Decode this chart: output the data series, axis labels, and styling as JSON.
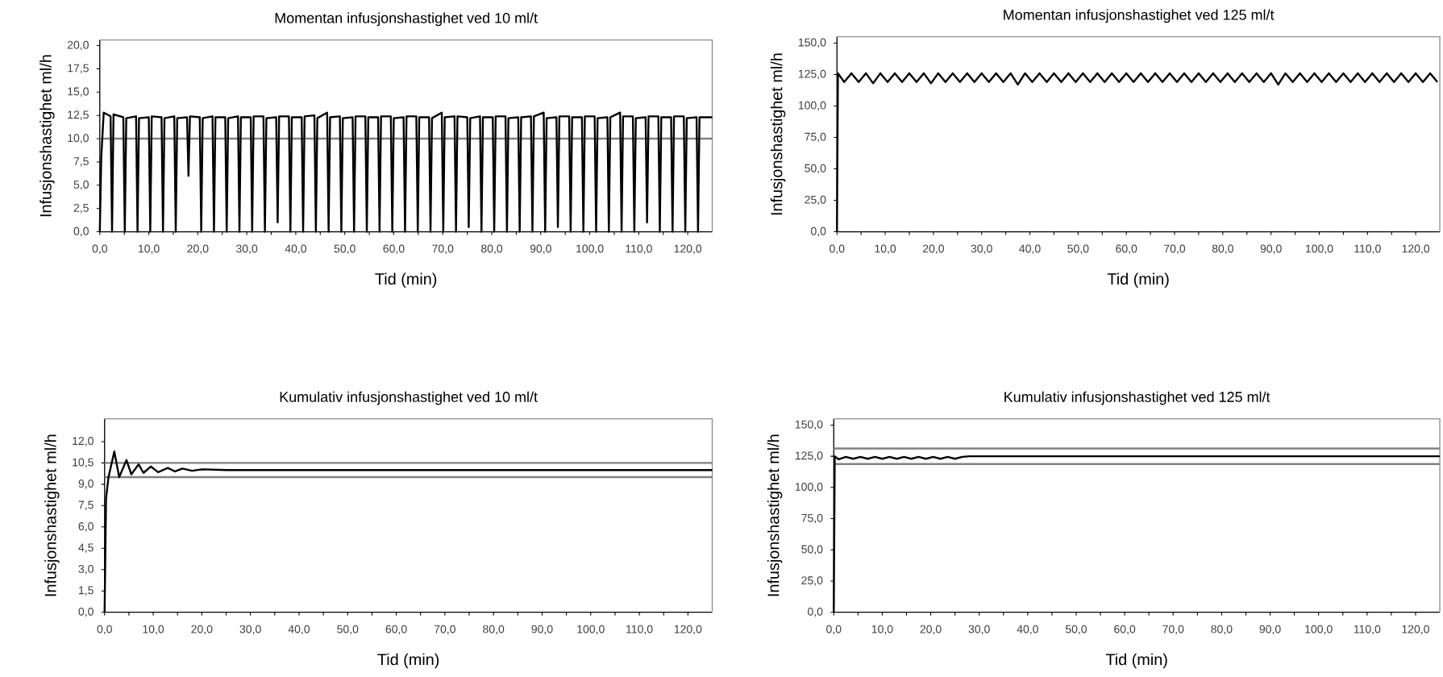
{
  "chart_data": [
    {
      "type": "line",
      "title": "Momentan infusjonshastighet ved 10 ml/t",
      "xlabel": "Tid (min)",
      "ylabel": "Infusjonshastighet ml/h",
      "xlim": [
        0,
        125
      ],
      "ylim": [
        0,
        20.6
      ],
      "xticks": [
        {
          "value": 0,
          "label": "0,0"
        },
        {
          "value": 5,
          "label": null
        },
        {
          "value": 10,
          "label": "10,0"
        },
        {
          "value": 15,
          "label": null
        },
        {
          "value": 20,
          "label": "20,0"
        },
        {
          "value": 25,
          "label": null
        },
        {
          "value": 30,
          "label": "30,0"
        },
        {
          "value": 35,
          "label": null
        },
        {
          "value": 40,
          "label": "40,0"
        },
        {
          "value": 45,
          "label": null
        },
        {
          "value": 50,
          "label": "50,0"
        },
        {
          "value": 55,
          "label": null
        },
        {
          "value": 60,
          "label": "60,0"
        },
        {
          "value": 65,
          "label": null
        },
        {
          "value": 70,
          "label": "70,0"
        },
        {
          "value": 75,
          "label": null
        },
        {
          "value": 80,
          "label": "80,0"
        },
        {
          "value": 85,
          "label": null
        },
        {
          "value": 90,
          "label": "90,0"
        },
        {
          "value": 95,
          "label": null
        },
        {
          "value": 100,
          "label": "100,0"
        },
        {
          "value": 105,
          "label": null
        },
        {
          "value": 110,
          "label": "110,0"
        },
        {
          "value": 115,
          "label": null
        },
        {
          "value": 120,
          "label": "120,0"
        }
      ],
      "yticks": [
        {
          "value": 0,
          "label": "0,0"
        },
        {
          "value": 2.5,
          "label": "2,5"
        },
        {
          "value": 5,
          "label": "5,0"
        },
        {
          "value": 7.5,
          "label": "7,5"
        },
        {
          "value": 10,
          "label": "10,0"
        },
        {
          "value": 12.5,
          "label": "12,5"
        },
        {
          "value": 15,
          "label": "15,0"
        },
        {
          "value": 17.5,
          "label": "17,5"
        },
        {
          "value": 20,
          "label": "20,0"
        }
      ],
      "ref_lines": [
        {
          "axis": "y",
          "value": 10,
          "color": "#808080"
        }
      ],
      "series": [
        {
          "color": "#000000",
          "x": [
            0,
            0.3,
            0.8,
            2.2,
            2.5,
            2.8,
            4.8,
            5.1,
            5.4,
            7.4,
            7.7,
            8.0,
            10.0,
            10.3,
            10.6,
            12.6,
            12.9,
            13.2,
            15.2,
            15.5,
            15.8,
            17.8,
            18.1,
            18.4,
            20.4,
            20.7,
            21.0,
            23.0,
            23.3,
            23.6,
            25.6,
            25.9,
            26.2,
            28.2,
            28.5,
            28.8,
            30.8,
            31.1,
            31.4,
            33.4,
            33.7,
            34.0,
            36.0,
            36.3,
            36.6,
            38.6,
            38.9,
            39.2,
            41.2,
            41.5,
            41.8,
            43.8,
            44.1,
            44.4,
            46.4,
            46.7,
            47.0,
            49.0,
            49.3,
            49.6,
            51.6,
            51.9,
            52.2,
            54.2,
            54.5,
            54.8,
            56.8,
            57.1,
            57.4,
            59.4,
            59.7,
            60.0,
            62.0,
            62.3,
            62.6,
            64.6,
            64.9,
            65.2,
            67.2,
            67.5,
            67.8,
            69.8,
            70.1,
            70.4,
            72.4,
            72.7,
            73.0,
            75.0,
            75.3,
            75.6,
            77.6,
            77.9,
            78.2,
            80.2,
            80.5,
            80.8,
            82.8,
            83.1,
            83.4,
            85.4,
            85.7,
            86.0,
            88.0,
            88.3,
            88.6,
            90.6,
            90.9,
            91.2,
            93.2,
            93.5,
            93.8,
            95.8,
            96.1,
            96.4,
            98.4,
            98.7,
            99.0,
            101.0,
            101.3,
            101.6,
            103.6,
            103.9,
            104.2,
            106.2,
            106.5,
            106.8,
            108.8,
            109.1,
            109.4,
            111.4,
            111.7,
            112.0,
            114.0,
            114.3,
            114.6,
            116.6,
            116.9,
            117.2,
            119.2,
            119.5,
            119.8,
            121.8,
            122.1,
            122.4,
            125
          ],
          "values": [
            0,
            8,
            12.8,
            12.4,
            0,
            12.6,
            12.3,
            0,
            12.2,
            12.4,
            0,
            12.2,
            12.3,
            0,
            12.4,
            12.3,
            0,
            12.2,
            12.4,
            0,
            12.2,
            12.3,
            6,
            12.4,
            12.3,
            0,
            12.2,
            12.4,
            0,
            12.3,
            12.3,
            0,
            12.2,
            12.4,
            0,
            12.3,
            12.3,
            0,
            12.4,
            12.4,
            0,
            12.2,
            12.3,
            1,
            12.4,
            12.4,
            0,
            12.3,
            12.3,
            0,
            12.4,
            12.5,
            0,
            12.2,
            12.8,
            0,
            12.3,
            12.4,
            0,
            12.2,
            12.3,
            0,
            12.4,
            12.4,
            0,
            12.3,
            12.3,
            0,
            12.4,
            12.4,
            0,
            12.2,
            12.3,
            0,
            12.4,
            12.4,
            0,
            12.3,
            12.3,
            0,
            12.2,
            12.8,
            0,
            12.3,
            12.4,
            0,
            12.4,
            12.3,
            0.5,
            12.2,
            12.4,
            0,
            12.3,
            12.3,
            0,
            12.4,
            12.4,
            0,
            12.2,
            12.3,
            0,
            12.3,
            12.4,
            0,
            12.4,
            12.8,
            0,
            12.2,
            12.3,
            0.5,
            12.4,
            12.4,
            0,
            12.3,
            12.3,
            0,
            12.4,
            12.4,
            0,
            12.2,
            12.3,
            0,
            12.3,
            12.8,
            0,
            12.4,
            12.4,
            0,
            12.2,
            12.3,
            1,
            12.4,
            12.4,
            0,
            12.3,
            12.3,
            0,
            12.4,
            12.4,
            0,
            12.2,
            12.3,
            0,
            12.3,
            12.3
          ]
        }
      ]
    },
    {
      "type": "line",
      "title": "Momentan infusjonshastighet ved 125 ml/t",
      "xlabel": "Tid (min)",
      "ylabel": "Infusjonshastighet ml/h",
      "xlim": [
        0,
        125
      ],
      "ylim": [
        0,
        155
      ],
      "xticks": [
        {
          "value": 0,
          "label": "0,0"
        },
        {
          "value": 5,
          "label": null
        },
        {
          "value": 10,
          "label": "10,0"
        },
        {
          "value": 15,
          "label": null
        },
        {
          "value": 20,
          "label": "20,0"
        },
        {
          "value": 25,
          "label": null
        },
        {
          "value": 30,
          "label": "30,0"
        },
        {
          "value": 35,
          "label": null
        },
        {
          "value": 40,
          "label": "40,0"
        },
        {
          "value": 45,
          "label": null
        },
        {
          "value": 50,
          "label": "50,0"
        },
        {
          "value": 55,
          "label": null
        },
        {
          "value": 60,
          "label": "60,0"
        },
        {
          "value": 65,
          "label": null
        },
        {
          "value": 70,
          "label": "70,0"
        },
        {
          "value": 75,
          "label": null
        },
        {
          "value": 80,
          "label": "80,0"
        },
        {
          "value": 85,
          "label": null
        },
        {
          "value": 90,
          "label": "90,0"
        },
        {
          "value": 95,
          "label": null
        },
        {
          "value": 100,
          "label": "100,0"
        },
        {
          "value": 105,
          "label": null
        },
        {
          "value": 110,
          "label": "110,0"
        },
        {
          "value": 115,
          "label": null
        },
        {
          "value": 120,
          "label": "120,0"
        }
      ],
      "yticks": [
        {
          "value": 0,
          "label": "0,0"
        },
        {
          "value": 25,
          "label": "25,0"
        },
        {
          "value": 50,
          "label": "50,0"
        },
        {
          "value": 75,
          "label": "75,0"
        },
        {
          "value": 100,
          "label": "100,0"
        },
        {
          "value": 125,
          "label": "125,0"
        },
        {
          "value": 150,
          "label": "150,0"
        }
      ],
      "series": [
        {
          "color": "#000000",
          "x": [
            0,
            0.2,
            1.5,
            3,
            4.5,
            6,
            7.5,
            9,
            10.5,
            12,
            13.5,
            15,
            16.5,
            18,
            19.5,
            21,
            22.5,
            24,
            25.5,
            27,
            28.5,
            30,
            31.5,
            33,
            34.5,
            36,
            37.5,
            39,
            40.5,
            42,
            43.5,
            45,
            46.5,
            48,
            49.5,
            51,
            52.5,
            54,
            55.5,
            57,
            58.5,
            60,
            61.5,
            63,
            64.5,
            66,
            67.5,
            69,
            70.5,
            72,
            73.5,
            75,
            76.5,
            78,
            79.5,
            81,
            82.5,
            84,
            85.5,
            87,
            88.5,
            90,
            91.5,
            93,
            94.5,
            96,
            97.5,
            99,
            100.5,
            102,
            103.5,
            105,
            106.5,
            108,
            109.5,
            111,
            112.5,
            114,
            115.5,
            117,
            118.5,
            120,
            121.5,
            123,
            124.5
          ],
          "values": [
            0,
            126,
            119,
            126,
            119,
            126,
            118,
            126,
            119,
            126,
            119,
            126,
            119,
            126,
            118,
            126,
            119,
            126,
            119,
            126,
            119,
            126,
            119,
            126,
            119,
            126,
            117,
            126,
            119,
            126,
            119,
            126,
            119,
            126,
            119,
            126,
            119,
            126,
            119,
            126,
            119,
            126,
            119,
            126,
            119,
            126,
            119,
            126,
            119,
            126,
            119,
            126,
            119,
            126,
            119,
            126,
            119,
            126,
            119,
            126,
            119,
            126,
            117,
            126,
            119,
            126,
            119,
            126,
            119,
            126,
            119,
            126,
            119,
            126,
            119,
            126,
            119,
            126,
            119,
            126,
            119,
            126,
            119,
            126,
            119
          ]
        }
      ]
    },
    {
      "type": "line",
      "title": "Kumulativ infusjonshastighet ved 10 ml/t",
      "xlabel": "Tid (min)",
      "ylabel": "Infusjonshastighet ml/h",
      "xlim": [
        0,
        125
      ],
      "ylim": [
        0,
        13.6
      ],
      "xticks": [
        {
          "value": 0,
          "label": "0,0"
        },
        {
          "value": 5,
          "label": null
        },
        {
          "value": 10,
          "label": "10,0"
        },
        {
          "value": 15,
          "label": null
        },
        {
          "value": 20,
          "label": "20,0"
        },
        {
          "value": 25,
          "label": null
        },
        {
          "value": 30,
          "label": "30,0"
        },
        {
          "value": 35,
          "label": null
        },
        {
          "value": 40,
          "label": "40,0"
        },
        {
          "value": 45,
          "label": null
        },
        {
          "value": 50,
          "label": "50,0"
        },
        {
          "value": 55,
          "label": null
        },
        {
          "value": 60,
          "label": "60,0"
        },
        {
          "value": 65,
          "label": null
        },
        {
          "value": 70,
          "label": "70,0"
        },
        {
          "value": 75,
          "label": null
        },
        {
          "value": 80,
          "label": "80,0"
        },
        {
          "value": 85,
          "label": null
        },
        {
          "value": 90,
          "label": "90,0"
        },
        {
          "value": 95,
          "label": null
        },
        {
          "value": 100,
          "label": "100,0"
        },
        {
          "value": 105,
          "label": null
        },
        {
          "value": 110,
          "label": "110,0"
        },
        {
          "value": 115,
          "label": null
        },
        {
          "value": 120,
          "label": "120,0"
        }
      ],
      "yticks": [
        {
          "value": 0,
          "label": "0,0"
        },
        {
          "value": 1.5,
          "label": "1,5"
        },
        {
          "value": 3,
          "label": "3,0"
        },
        {
          "value": 4.5,
          "label": "4,5"
        },
        {
          "value": 6,
          "label": "6,0"
        },
        {
          "value": 7.5,
          "label": "7,5"
        },
        {
          "value": 9,
          "label": "9,0"
        },
        {
          "value": 10.5,
          "label": "10,5"
        },
        {
          "value": 12,
          "label": "12,0"
        }
      ],
      "ref_lines": [
        {
          "axis": "y",
          "value": 10.5,
          "color": "#808080"
        },
        {
          "axis": "y",
          "value": 9.5,
          "color": "#808080"
        }
      ],
      "series": [
        {
          "color": "#000000",
          "x": [
            0,
            0.3,
            0.8,
            2.0,
            3.0,
            4.5,
            5.5,
            7,
            8,
            9.5,
            11,
            13,
            14.5,
            16,
            18,
            20,
            25,
            125
          ],
          "values": [
            0,
            8,
            9.5,
            11.3,
            9.5,
            10.7,
            9.7,
            10.4,
            9.8,
            10.25,
            9.85,
            10.15,
            9.9,
            10.1,
            9.95,
            10.05,
            10.0,
            10.0
          ]
        }
      ]
    },
    {
      "type": "line",
      "title": "Kumulativ infusjonshastighet ved 125 ml/t",
      "xlabel": "Tid (min)",
      "ylabel": "Infusjonshastighet ml/h",
      "xlim": [
        0,
        125
      ],
      "ylim": [
        0,
        155
      ],
      "xticks": [
        {
          "value": 0,
          "label": "0,0"
        },
        {
          "value": 5,
          "label": null
        },
        {
          "value": 10,
          "label": "10,0"
        },
        {
          "value": 15,
          "label": null
        },
        {
          "value": 20,
          "label": "20,0"
        },
        {
          "value": 25,
          "label": null
        },
        {
          "value": 30,
          "label": "30,0"
        },
        {
          "value": 35,
          "label": null
        },
        {
          "value": 40,
          "label": "40,0"
        },
        {
          "value": 45,
          "label": null
        },
        {
          "value": 50,
          "label": "50,0"
        },
        {
          "value": 55,
          "label": null
        },
        {
          "value": 60,
          "label": "60,0"
        },
        {
          "value": 65,
          "label": null
        },
        {
          "value": 70,
          "label": "70,0"
        },
        {
          "value": 75,
          "label": null
        },
        {
          "value": 80,
          "label": "80,0"
        },
        {
          "value": 85,
          "label": null
        },
        {
          "value": 90,
          "label": "90,0"
        },
        {
          "value": 95,
          "label": null
        },
        {
          "value": 100,
          "label": "100,0"
        },
        {
          "value": 105,
          "label": null
        },
        {
          "value": 110,
          "label": "110,0"
        },
        {
          "value": 115,
          "label": null
        },
        {
          "value": 120,
          "label": "120,0"
        }
      ],
      "yticks": [
        {
          "value": 0,
          "label": "0,0"
        },
        {
          "value": 25,
          "label": "25,0"
        },
        {
          "value": 50,
          "label": "50,0"
        },
        {
          "value": 75,
          "label": "75,0"
        },
        {
          "value": 100,
          "label": "100,0"
        },
        {
          "value": 125,
          "label": "125,0"
        },
        {
          "value": 150,
          "label": "150,0"
        }
      ],
      "ref_lines": [
        {
          "axis": "y",
          "value": 131.25,
          "color": "#808080"
        },
        {
          "axis": "y",
          "value": 118.75,
          "color": "#808080"
        }
      ],
      "series": [
        {
          "color": "#000000",
          "x": [
            0,
            0.2,
            1,
            2.5,
            4,
            5.5,
            7,
            8.5,
            10,
            11.5,
            13,
            14.5,
            16,
            17.5,
            19,
            20.5,
            22,
            23.5,
            25,
            26.5,
            28,
            125
          ],
          "values": [
            0,
            125,
            122.5,
            124.5,
            123,
            124.5,
            123,
            124.5,
            123,
            124.5,
            123,
            124.5,
            123,
            124.5,
            123,
            124.5,
            123,
            124.5,
            123,
            124.5,
            125,
            125
          ]
        }
      ]
    }
  ]
}
